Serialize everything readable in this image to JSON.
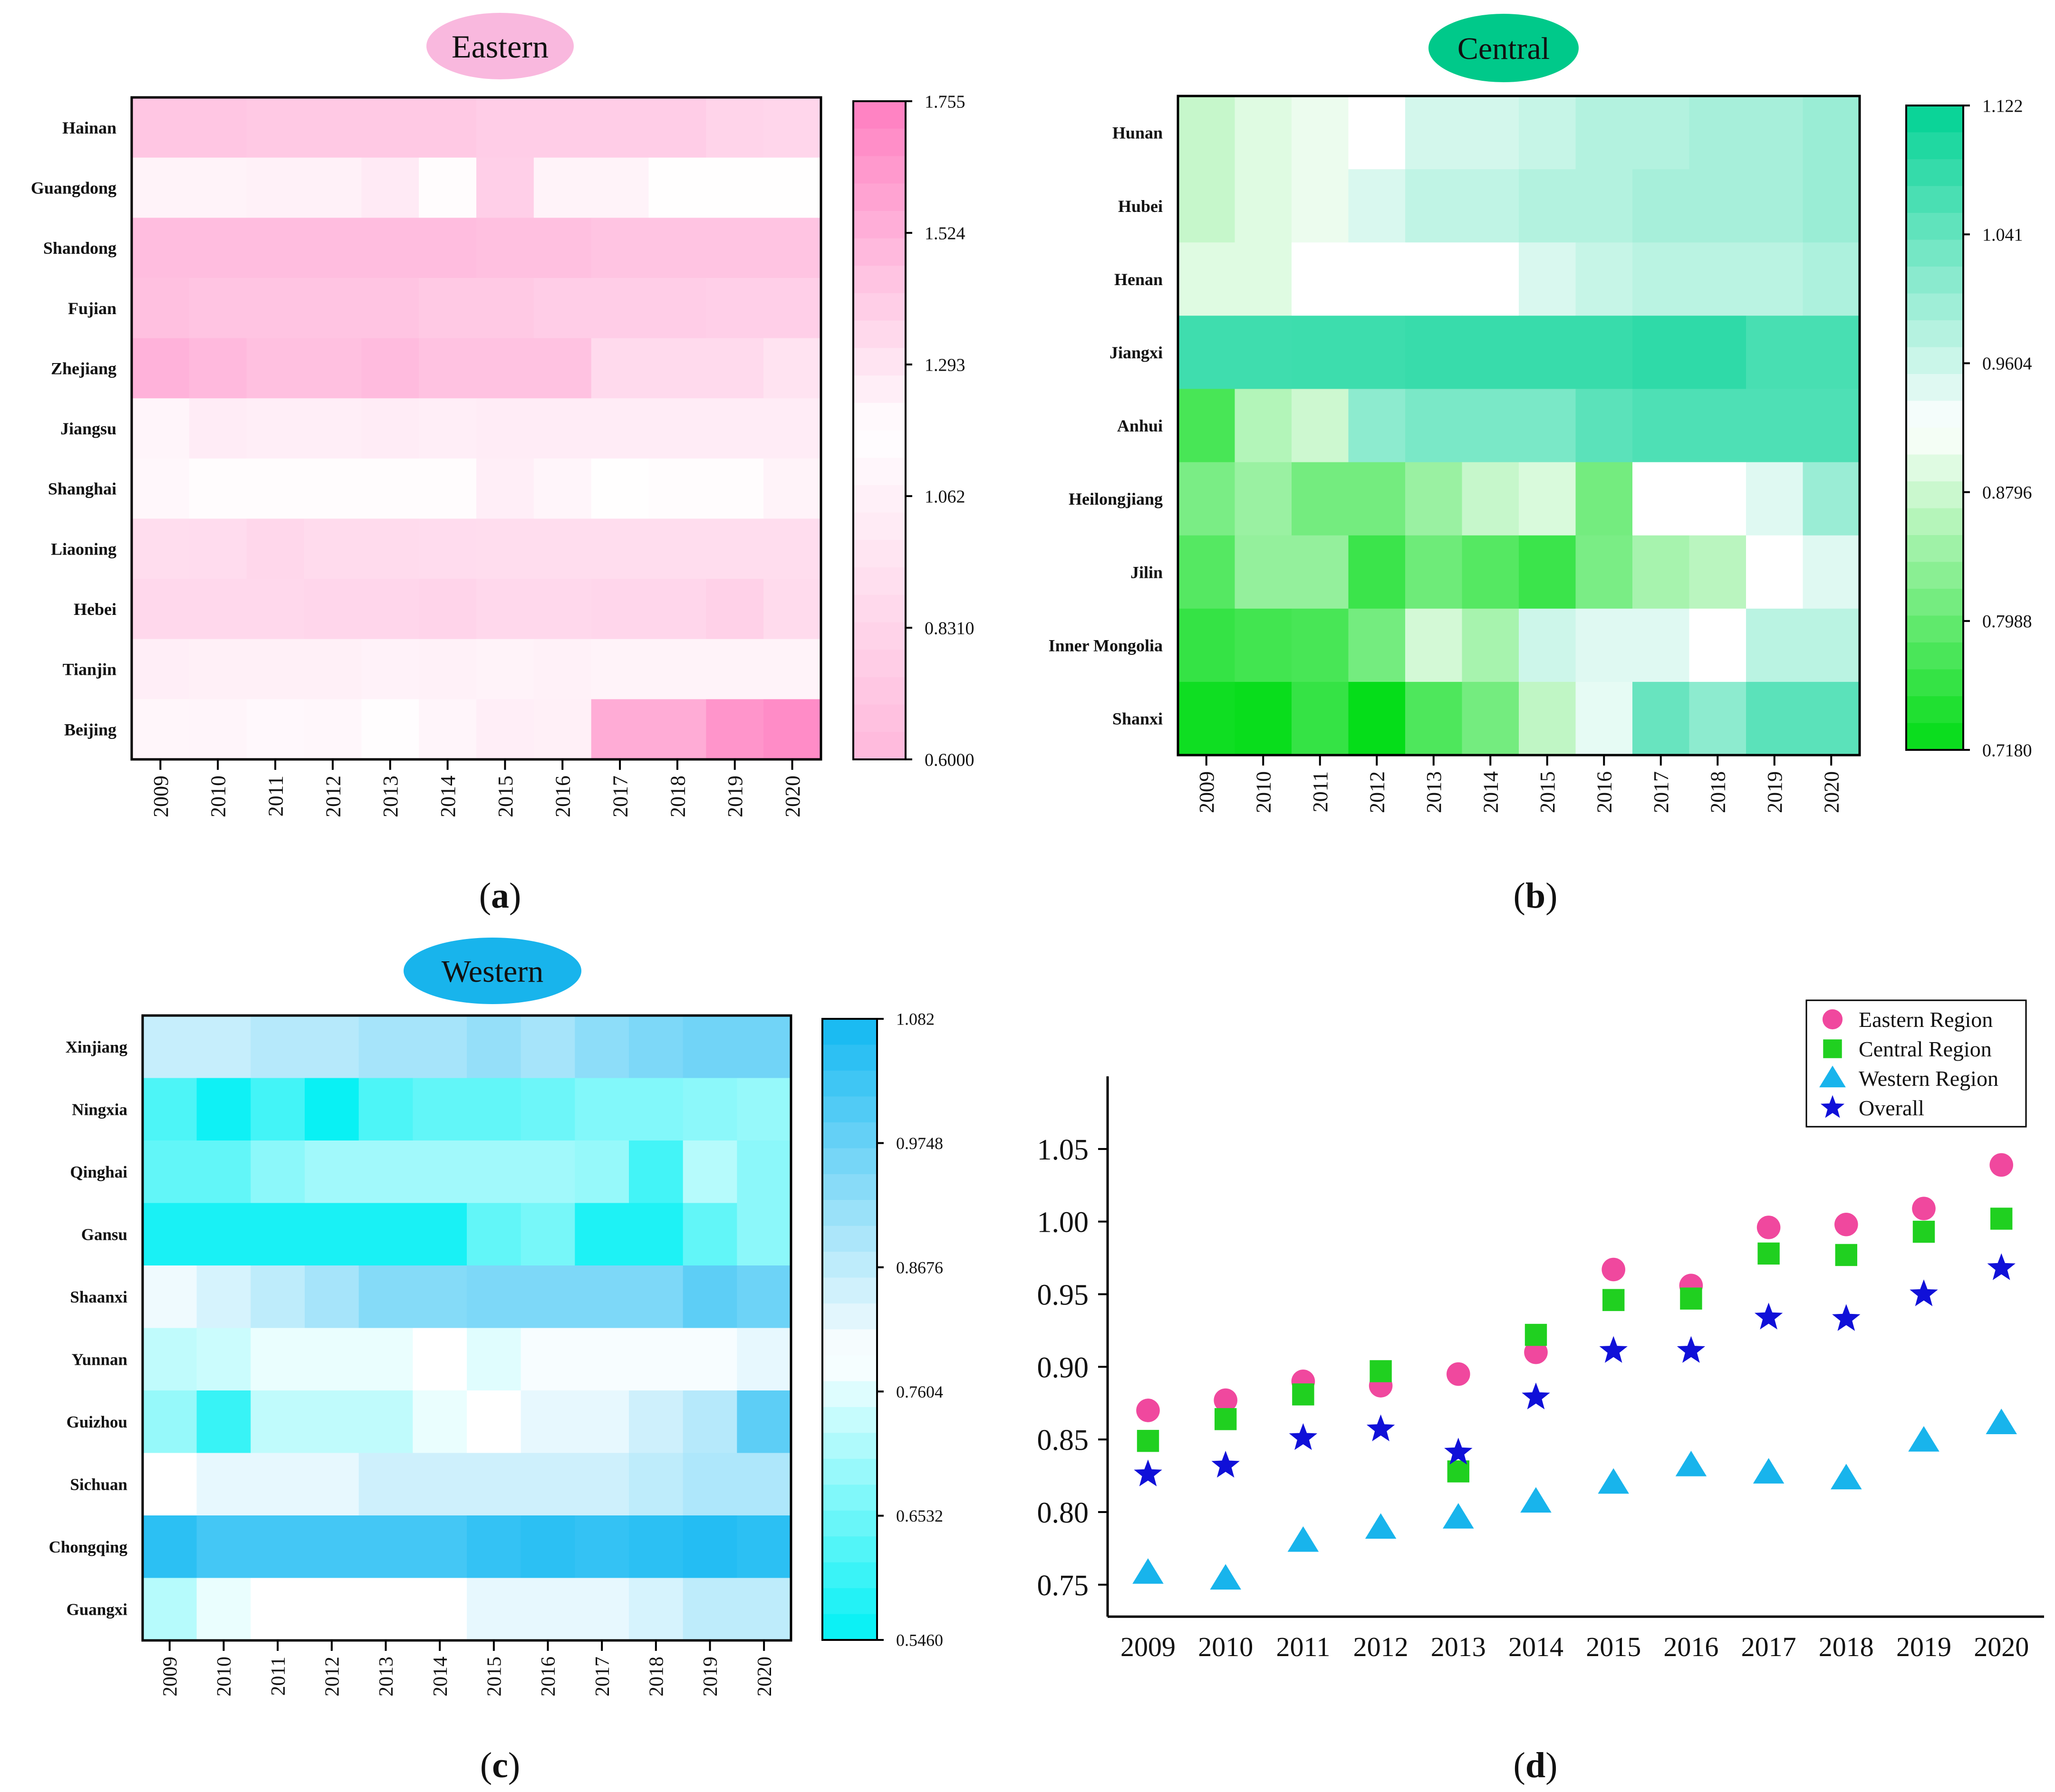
{
  "figure": {
    "panel_labels": [
      "(a)",
      "(b)",
      "(c)",
      "(d)"
    ]
  },
  "chart_data": [
    {
      "type": "heatmap",
      "title": "Eastern",
      "title_color": "#f9b8de",
      "x": [
        "2009",
        "2010",
        "2011",
        "2012",
        "2013",
        "2014",
        "2015",
        "2016",
        "2017",
        "2018",
        "2019",
        "2020"
      ],
      "y": [
        "Hainan",
        "Guangdong",
        "Shandong",
        "Fujian",
        "Zhejiang",
        "Jiangsu",
        "Shanghai",
        "Liaoning",
        "Hebei",
        "Tianjin",
        "Beijing"
      ],
      "colorbar_ticks": [
        "1.755",
        "1.524",
        "1.293",
        "1.062",
        "0.8310",
        "0.6000"
      ],
      "colorbar_range": [
        0.6,
        1.755
      ],
      "colors": {
        "low": "#ffb8dc",
        "mid": "#ffffff",
        "high": "#ff7ec0",
        "mid_value": 1.175
      },
      "values": [
        [
          1.43,
          1.43,
          1.42,
          1.42,
          1.42,
          1.42,
          1.4,
          1.4,
          1.4,
          1.4,
          1.37,
          1.36
        ],
        [
          1.23,
          1.23,
          1.24,
          1.24,
          1.27,
          1.19,
          1.39,
          1.23,
          1.23,
          1.18,
          1.18,
          1.18
        ],
        [
          1.47,
          1.47,
          1.47,
          1.47,
          1.47,
          1.47,
          1.46,
          1.46,
          1.44,
          1.44,
          1.44,
          1.44
        ],
        [
          1.46,
          1.44,
          1.44,
          1.44,
          1.44,
          1.42,
          1.42,
          1.4,
          1.4,
          1.4,
          1.39,
          1.39
        ],
        [
          1.52,
          1.49,
          1.46,
          1.46,
          1.48,
          1.45,
          1.45,
          1.45,
          1.34,
          1.34,
          1.34,
          1.3
        ],
        [
          1.22,
          1.26,
          1.25,
          1.25,
          1.26,
          1.25,
          1.26,
          1.26,
          1.26,
          1.26,
          1.26,
          1.26
        ],
        [
          1.21,
          1.19,
          1.19,
          1.19,
          1.19,
          1.19,
          1.25,
          1.22,
          1.18,
          1.19,
          1.19,
          1.23
        ],
        [
          0.9,
          0.89,
          0.85,
          0.88,
          0.88,
          0.89,
          0.9,
          0.9,
          0.9,
          0.9,
          0.9,
          0.9
        ],
        [
          0.86,
          0.86,
          0.86,
          0.84,
          0.84,
          0.83,
          0.86,
          0.86,
          0.84,
          0.84,
          0.8,
          0.88
        ],
        [
          1.04,
          1.05,
          1.05,
          1.05,
          1.07,
          1.06,
          1.08,
          1.06,
          1.08,
          1.08,
          1.08,
          1.08
        ],
        [
          1.1,
          1.09,
          1.12,
          1.11,
          1.16,
          1.09,
          1.04,
          1.05,
          1.55,
          1.55,
          1.65,
          1.69
        ]
      ]
    },
    {
      "type": "heatmap",
      "title": "Central",
      "title_color": "#00c98a",
      "x": [
        "2009",
        "2010",
        "2011",
        "2012",
        "2013",
        "2014",
        "2015",
        "2016",
        "2017",
        "2018",
        "2019",
        "2020"
      ],
      "y": [
        "Hunan",
        "Hubei",
        "Henan",
        "Jiangxi",
        "Anhui",
        "Heilongjiang",
        "Jilin",
        "Inner Mongolia",
        "Shanxi"
      ],
      "colorbar_ticks": [
        "1.122",
        "1.041",
        "0.9604",
        "0.8796",
        "0.7988",
        "0.7180"
      ],
      "colorbar_range": [
        0.718,
        1.122
      ],
      "colors": {
        "low": "#00dc14",
        "mid": "#ffffff",
        "high": "#00d294",
        "mid_value": 0.92
      },
      "values": [
        [
          0.875,
          0.895,
          0.905,
          0.92,
          0.955,
          0.955,
          0.965,
          0.98,
          0.98,
          0.99,
          0.99,
          1.0
        ],
        [
          0.875,
          0.895,
          0.905,
          0.95,
          0.97,
          0.97,
          0.98,
          0.98,
          0.99,
          0.99,
          0.99,
          1.0
        ],
        [
          0.895,
          0.895,
          0.92,
          0.92,
          0.92,
          0.92,
          0.95,
          0.965,
          0.975,
          0.975,
          0.975,
          0.985
        ],
        [
          1.072,
          1.072,
          1.074,
          1.074,
          1.078,
          1.078,
          1.078,
          1.078,
          1.085,
          1.085,
          1.065,
          1.065
        ],
        [
          0.775,
          0.86,
          0.88,
          1.01,
          1.025,
          1.025,
          1.025,
          1.05,
          1.06,
          1.06,
          1.06,
          1.06
        ],
        [
          0.815,
          0.84,
          0.81,
          0.81,
          0.84,
          0.875,
          0.89,
          0.81,
          0.92,
          0.92,
          0.945,
          1.0
        ],
        [
          0.785,
          0.835,
          0.835,
          0.765,
          0.805,
          0.785,
          0.765,
          0.815,
          0.85,
          0.865,
          0.92,
          0.945
        ],
        [
          0.76,
          0.77,
          0.775,
          0.81,
          0.885,
          0.85,
          0.96,
          0.945,
          0.945,
          0.92,
          0.975,
          0.975
        ],
        [
          0.73,
          0.725,
          0.76,
          0.722,
          0.78,
          0.81,
          0.87,
          0.94,
          1.04,
          1.01,
          1.05,
          1.05
        ]
      ]
    },
    {
      "type": "heatmap",
      "title": "Western",
      "title_color": "#18b4ec",
      "x": [
        "2009",
        "2010",
        "2011",
        "2012",
        "2013",
        "2014",
        "2015",
        "2016",
        "2017",
        "2018",
        "2019",
        "2020"
      ],
      "y": [
        "Xinjiang",
        "Ningxia",
        "Qinghai",
        "Gansu",
        "Shaanxi",
        "Yunnan",
        "Guizhou",
        "Sichuan",
        "Chongqing",
        "Guangxi"
      ],
      "colorbar_ticks": [
        "1.082",
        "0.9748",
        "0.8676",
        "0.7604",
        "0.6532",
        "0.5460"
      ],
      "colorbar_range": [
        0.546,
        1.082
      ],
      "colors": {
        "low": "#00f0f4",
        "mid": "#ffffff",
        "high": "#12b8f2",
        "mid_value": 0.79
      },
      "values": [
        [
          0.86,
          0.86,
          0.88,
          0.88,
          0.9,
          0.9,
          0.92,
          0.9,
          0.93,
          0.95,
          0.965,
          0.965
        ],
        [
          0.62,
          0.56,
          0.61,
          0.555,
          0.62,
          0.64,
          0.64,
          0.65,
          0.67,
          0.67,
          0.68,
          0.69
        ],
        [
          0.64,
          0.64,
          0.68,
          0.7,
          0.7,
          0.7,
          0.7,
          0.7,
          0.69,
          0.61,
          0.72,
          0.68
        ],
        [
          0.57,
          0.57,
          0.57,
          0.57,
          0.57,
          0.57,
          0.64,
          0.66,
          0.575,
          0.575,
          0.64,
          0.68
        ],
        [
          0.81,
          0.84,
          0.87,
          0.9,
          0.94,
          0.94,
          0.95,
          0.95,
          0.95,
          0.95,
          0.99,
          0.97
        ],
        [
          0.73,
          0.74,
          0.77,
          0.77,
          0.77,
          0.79,
          0.76,
          0.8,
          0.8,
          0.8,
          0.8,
          0.82
        ],
        [
          0.69,
          0.6,
          0.73,
          0.73,
          0.73,
          0.77,
          0.79,
          0.82,
          0.82,
          0.85,
          0.88,
          0.99
        ],
        [
          0.79,
          0.82,
          0.82,
          0.82,
          0.85,
          0.85,
          0.85,
          0.85,
          0.85,
          0.87,
          0.89,
          0.89
        ],
        [
          1.05,
          1.02,
          1.02,
          1.02,
          1.02,
          1.02,
          1.04,
          1.05,
          1.04,
          1.05,
          1.06,
          1.05
        ],
        [
          0.72,
          0.77,
          0.79,
          0.79,
          0.79,
          0.79,
          0.82,
          0.82,
          0.82,
          0.84,
          0.87,
          0.87
        ]
      ]
    },
    {
      "type": "scatter",
      "x": [
        "2009",
        "2010",
        "2011",
        "2012",
        "2013",
        "2014",
        "2015",
        "2016",
        "2017",
        "2018",
        "2019",
        "2020"
      ],
      "yticks": [
        "0.75",
        "0.80",
        "0.85",
        "0.90",
        "0.95",
        "1.00",
        "1.05"
      ],
      "ylim": [
        0.728,
        1.1
      ],
      "series": [
        {
          "name": "Eastern Region",
          "marker": "circle",
          "color": "#f0489e",
          "values": [
            0.87,
            0.877,
            0.89,
            0.887,
            0.895,
            0.91,
            0.967,
            0.956,
            0.996,
            0.998,
            1.009,
            1.039
          ]
        },
        {
          "name": "Central Region",
          "marker": "square",
          "color": "#20d020",
          "values": [
            0.849,
            0.864,
            0.881,
            0.897,
            0.828,
            0.922,
            0.946,
            0.947,
            0.978,
            0.977,
            0.993,
            1.002
          ]
        },
        {
          "name": "Western Region",
          "marker": "triangle",
          "color": "#18b4ec",
          "values": [
            0.758,
            0.754,
            0.78,
            0.789,
            0.796,
            0.807,
            0.82,
            0.832,
            0.827,
            0.823,
            0.849,
            0.861
          ]
        },
        {
          "name": "Overall",
          "marker": "star",
          "color": "#1010d8",
          "values": [
            0.826,
            0.832,
            0.851,
            0.857,
            0.841,
            0.879,
            0.911,
            0.911,
            0.934,
            0.933,
            0.95,
            0.968
          ]
        }
      ],
      "legend_position": "top-right"
    }
  ]
}
